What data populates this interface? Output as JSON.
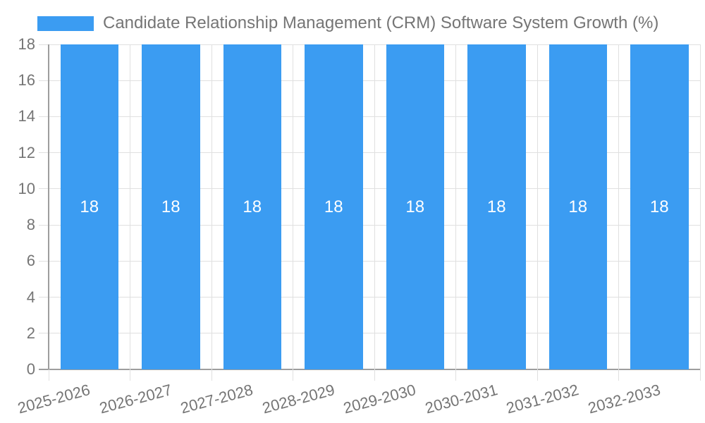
{
  "legend": {
    "label": "Candidate Relationship Management (CRM) Software System Growth (%)"
  },
  "colors": {
    "bar": "#3B9CF2",
    "text": "#757575",
    "grid": "#E0E0E0",
    "axis": "#9E9E9E",
    "value_label": "#FFFFFF",
    "background": "#FFFFFF"
  },
  "chart_data": {
    "type": "bar",
    "title": "Candidate Relationship Management (CRM) Software System Growth (%)",
    "categories": [
      "2025-2026",
      "2026-2027",
      "2027-2028",
      "2028-2029",
      "2029-2030",
      "2030-2031",
      "2031-2032",
      "2032-2033"
    ],
    "values": [
      18,
      18,
      18,
      18,
      18,
      18,
      18,
      18
    ],
    "value_labels": [
      "18",
      "18",
      "18",
      "18",
      "18",
      "18",
      "18",
      "18"
    ],
    "xlabel": "",
    "ylabel": "",
    "ylim": [
      0,
      18
    ],
    "yticks": [
      0,
      2,
      4,
      6,
      8,
      10,
      12,
      14,
      16,
      18
    ],
    "grid": true,
    "legend_position": "top-left",
    "x_tick_rotation_deg": -15,
    "bar_label_position": "center"
  }
}
